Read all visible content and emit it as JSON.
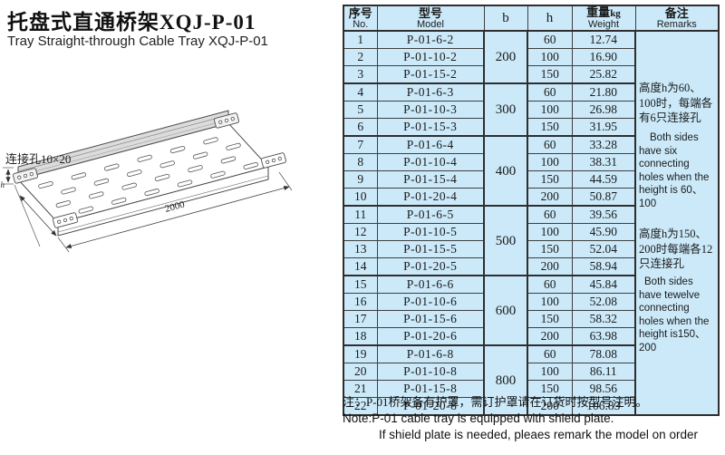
{
  "page": {
    "title_zh": "托盘式直通桥架XQJ-P-01",
    "title_en": "Tray Straight-through Cable Tray XQJ-P-01"
  },
  "figure": {
    "hole_label": "连接孔10×20",
    "length_dim": "2000",
    "height_dim": "h"
  },
  "table": {
    "headers": {
      "no_zh": "序号",
      "no_en": "No.",
      "model_zh": "型号",
      "model_en": "Model",
      "b": "b",
      "h": "h",
      "weight_zh": "重量",
      "weight_unit": "kg",
      "weight_en": "Weight",
      "remarks_zh": "备注",
      "remarks_en": "Remarks"
    },
    "b_groups": [
      {
        "b": "200",
        "rows": 3
      },
      {
        "b": "300",
        "rows": 3
      },
      {
        "b": "400",
        "rows": 4
      },
      {
        "b": "500",
        "rows": 4
      },
      {
        "b": "600",
        "rows": 4
      },
      {
        "b": "800",
        "rows": 4
      }
    ],
    "rows": [
      {
        "no": "1",
        "model": "P-01-6-2",
        "h": "60",
        "weight": "12.74"
      },
      {
        "no": "2",
        "model": "P-01-10-2",
        "h": "100",
        "weight": "16.90"
      },
      {
        "no": "3",
        "model": "P-01-15-2",
        "h": "150",
        "weight": "25.82"
      },
      {
        "no": "4",
        "model": "P-01-6-3",
        "h": "60",
        "weight": "21.80"
      },
      {
        "no": "5",
        "model": "P-01-10-3",
        "h": "100",
        "weight": "26.98"
      },
      {
        "no": "6",
        "model": "P-01-15-3",
        "h": "150",
        "weight": "31.95"
      },
      {
        "no": "7",
        "model": "P-01-6-4",
        "h": "60",
        "weight": "33.28"
      },
      {
        "no": "8",
        "model": "P-01-10-4",
        "h": "100",
        "weight": "38.31"
      },
      {
        "no": "9",
        "model": "P-01-15-4",
        "h": "150",
        "weight": "44.59"
      },
      {
        "no": "10",
        "model": "P-01-20-4",
        "h": "200",
        "weight": "50.87"
      },
      {
        "no": "11",
        "model": "P-01-6-5",
        "h": "60",
        "weight": "39.56"
      },
      {
        "no": "12",
        "model": "P-01-10-5",
        "h": "100",
        "weight": "45.90"
      },
      {
        "no": "13",
        "model": "P-01-15-5",
        "h": "150",
        "weight": "52.04"
      },
      {
        "no": "14",
        "model": "P-01-20-5",
        "h": "200",
        "weight": "58.94"
      },
      {
        "no": "15",
        "model": "P-01-6-6",
        "h": "60",
        "weight": "45.84"
      },
      {
        "no": "16",
        "model": "P-01-10-6",
        "h": "100",
        "weight": "52.08"
      },
      {
        "no": "17",
        "model": "P-01-15-6",
        "h": "150",
        "weight": "58.32"
      },
      {
        "no": "18",
        "model": "P-01-20-6",
        "h": "200",
        "weight": "63.98"
      },
      {
        "no": "19",
        "model": "P-01-6-8",
        "h": "60",
        "weight": "78.08"
      },
      {
        "no": "20",
        "model": "P-01-10-8",
        "h": "100",
        "weight": "86.11"
      },
      {
        "no": "21",
        "model": "P-01-15-8",
        "h": "150",
        "weight": "98.56"
      },
      {
        "no": "22",
        "model": "P-01-20-8",
        "h": "200",
        "weight": "106.83"
      }
    ],
    "remarks": {
      "zh1": "高度h为60、100时，每端各有6只连接孔",
      "en1": "Both sides have six connecting holes when the height is 60、100",
      "zh2": "高度h为150、200时每端各12只连接孔",
      "en2": "Both sides have tewelve connecting holes when the height is150、200"
    }
  },
  "notes": {
    "zh": "注：P-01桥架备有护罩，需订护罩请在订货时按型号注明。",
    "en1": "Note:P-01 cable tray is equipped with shield plate.",
    "en2": "If shield plate is needed, pleaes remark the model on order"
  },
  "colors": {
    "cell_bg": "#cbe9f9",
    "border": "#3f3f3f",
    "text": "#1b1b1b"
  }
}
